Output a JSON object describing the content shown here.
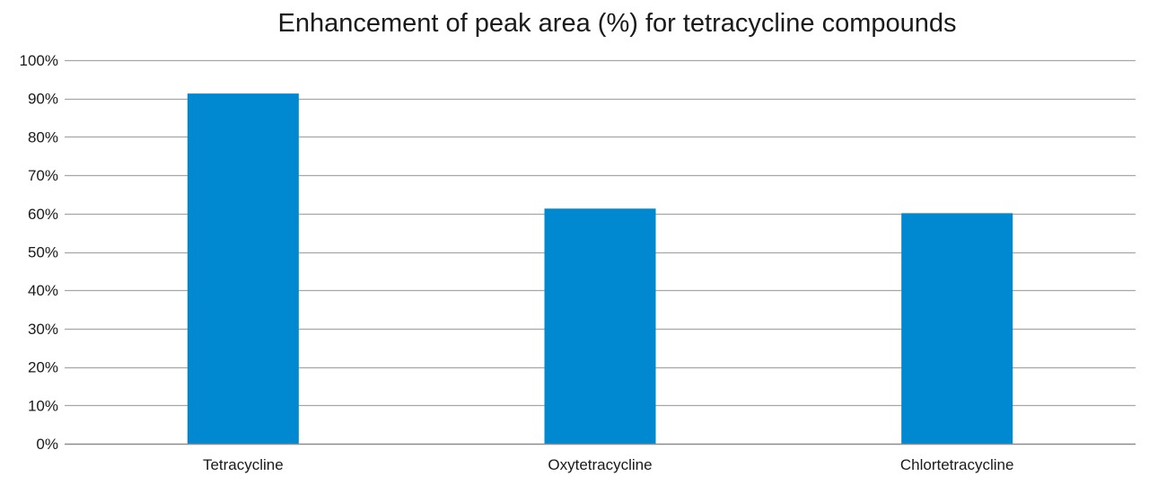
{
  "chart_data": {
    "type": "bar",
    "title": "Enhancement of peak area (%) for tetracycline compounds",
    "categories": [
      "Tetracycline",
      "Oxytetracycline",
      "Chlortetracycline"
    ],
    "values": [
      91.3,
      61.3,
      60.1
    ],
    "ylim": [
      0,
      100
    ],
    "yticks": [
      0,
      10,
      20,
      30,
      40,
      50,
      60,
      70,
      80,
      90,
      100
    ],
    "ytick_labels": [
      "0%",
      "10%",
      "20%",
      "30%",
      "40%",
      "50%",
      "60%",
      "70%",
      "80%",
      "90%",
      "100%"
    ],
    "xlabel": "",
    "ylabel": "",
    "grid": true,
    "legend": "none",
    "colors": {
      "bar": "#0089d1",
      "grid": "#a6a6a6",
      "axis": "#8c8c8c",
      "text": "#1a1a1a"
    }
  }
}
